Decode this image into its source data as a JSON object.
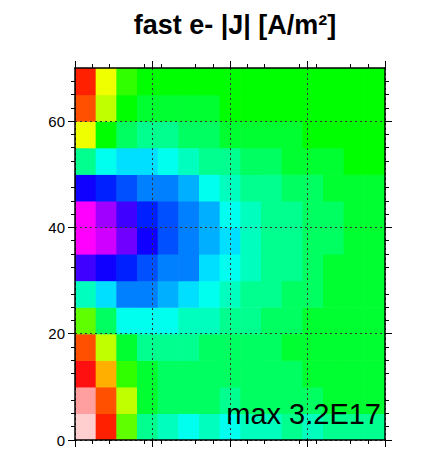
{
  "chart_data": {
    "type": "heatmap",
    "title": "fast e- |J| [A/m²]",
    "annotation": "max 3.2E17",
    "xlim": [
      0,
      60
    ],
    "xticks": [
      0,
      15,
      30,
      45,
      60
    ],
    "ylim": [
      0,
      70
    ],
    "yticks": [
      0,
      20,
      40,
      60
    ],
    "grid": true,
    "tick_labels": "y",
    "color_range": [
      0,
      3.2e+17
    ],
    "x": [
      2,
      6,
      10,
      14,
      18,
      22,
      26,
      30,
      34,
      38,
      42,
      46,
      50,
      54,
      58
    ],
    "y": [
      2.5,
      7.5,
      12.5,
      17.5,
      22.5,
      27.5,
      32.5,
      37.5,
      42.5,
      47.5,
      52.5,
      57.5,
      62.5,
      67.5
    ],
    "cells": [
      [
        1e+16,
        6e+16,
        1.4e+17,
        1.9e+17,
        2e+17,
        2.1e+17,
        2e+17,
        2.1e+17,
        2e+17,
        2e+17,
        1.9e+17,
        2e+17,
        1.9e+17,
        1.9e+17,
        1.9e+17
      ],
      [
        2e+16,
        7e+16,
        1.2e+17,
        1.7e+17,
        1.8e+17,
        1.8e+17,
        1.8e+17,
        1.9e+17,
        1.8e+17,
        1.8e+17,
        1.8e+17,
        1.8e+17,
        1.7e+17,
        1.7e+17,
        1.7e+17
      ],
      [
        5e+16,
        9e+16,
        1.5e+17,
        1.7e+17,
        1.8e+17,
        1.8e+17,
        1.8e+17,
        1.8e+17,
        1.8e+17,
        1.8e+17,
        1.8e+17,
        1.7e+17,
        1.7e+17,
        1.7e+17,
        1.7e+17
      ],
      [
        7e+16,
        1.2e+17,
        1.7e+17,
        1.9e+17,
        1.9e+17,
        1.9e+17,
        1.8e+17,
        1.8e+17,
        1.8e+17,
        1.8e+17,
        1.7e+17,
        1.7e+17,
        1.7e+17,
        1.7e+17,
        1.7e+17
      ],
      [
        1.4e+17,
        1.8e+17,
        2.1e+17,
        2.1e+17,
        2.1e+17,
        2e+17,
        2e+17,
        1.9e+17,
        1.9e+17,
        1.8e+17,
        1.8e+17,
        1.7e+17,
        1.7e+17,
        1.7e+17,
        1.7e+17
      ],
      [
        2e+17,
        2.2e+17,
        2.4e+17,
        2.4e+17,
        2.3e+17,
        2.2e+17,
        2.1e+17,
        2e+17,
        1.9e+17,
        1.9e+17,
        1.8e+17,
        1.8e+17,
        1.7e+17,
        1.7e+17,
        1.7e+17
      ],
      [
        2.8e+17,
        2.7e+17,
        2.6e+17,
        2.5e+17,
        2.4e+17,
        2.4e+17,
        2.2e+17,
        2.1e+17,
        2e+17,
        1.9e+17,
        1.9e+17,
        1.8e+17,
        1.7e+17,
        1.7e+17,
        1.7e+17
      ],
      [
        3.2e+17,
        3.1e+17,
        2.9e+17,
        2.7e+17,
        2.5e+17,
        2.4e+17,
        2.3e+17,
        2.2e+17,
        2e+17,
        1.9e+17,
        1.9e+17,
        1.8e+17,
        1.8e+17,
        1.7e+17,
        1.7e+17
      ],
      [
        3.2e+17,
        3e+17,
        2.8e+17,
        2.6e+17,
        2.5e+17,
        2.4e+17,
        2.3e+17,
        2.1e+17,
        2e+17,
        1.9e+17,
        1.9e+17,
        1.8e+17,
        1.8e+17,
        1.7e+17,
        1.7e+17
      ],
      [
        2.7e+17,
        2.6e+17,
        2.5e+17,
        2.4e+17,
        2.4e+17,
        2.3e+17,
        2.1e+17,
        2e+17,
        1.9e+17,
        1.9e+17,
        1.8e+17,
        1.8e+17,
        1.7e+17,
        1.7e+17,
        1.7e+17
      ],
      [
        1.9e+17,
        2.1e+17,
        2.2e+17,
        2.2e+17,
        2.1e+17,
        2e+17,
        1.9e+17,
        1.9e+17,
        1.8e+17,
        1.8e+17,
        1.7e+17,
        1.7e+17,
        1.7e+17,
        1.6e+17,
        1.6e+17
      ],
      [
        1.1e+17,
        1.6e+17,
        1.8e+17,
        1.9e+17,
        1.9e+17,
        1.8e+17,
        1.8e+17,
        1.7e+17,
        1.7e+17,
        1.7e+17,
        1.7e+17,
        1.6e+17,
        1.6e+17,
        1.6e+17,
        1.6e+17
      ],
      [
        7e+16,
        1.2e+17,
        1.6e+17,
        1.7e+17,
        1.7e+17,
        1.7e+17,
        1.7e+17,
        1.6e+17,
        1.6e+17,
        1.6e+17,
        1.6e+17,
        1.6e+17,
        1.6e+17,
        1.6e+17,
        1.6e+17
      ],
      [
        6e+16,
        1.1e+17,
        1.5e+17,
        1.6e+17,
        1.6e+17,
        1.6e+17,
        1.6e+17,
        1.6e+17,
        1.6e+17,
        1.6e+17,
        1.6e+17,
        1.6e+17,
        1.6e+17,
        1.6e+17,
        1.6e+17
      ]
    ]
  }
}
